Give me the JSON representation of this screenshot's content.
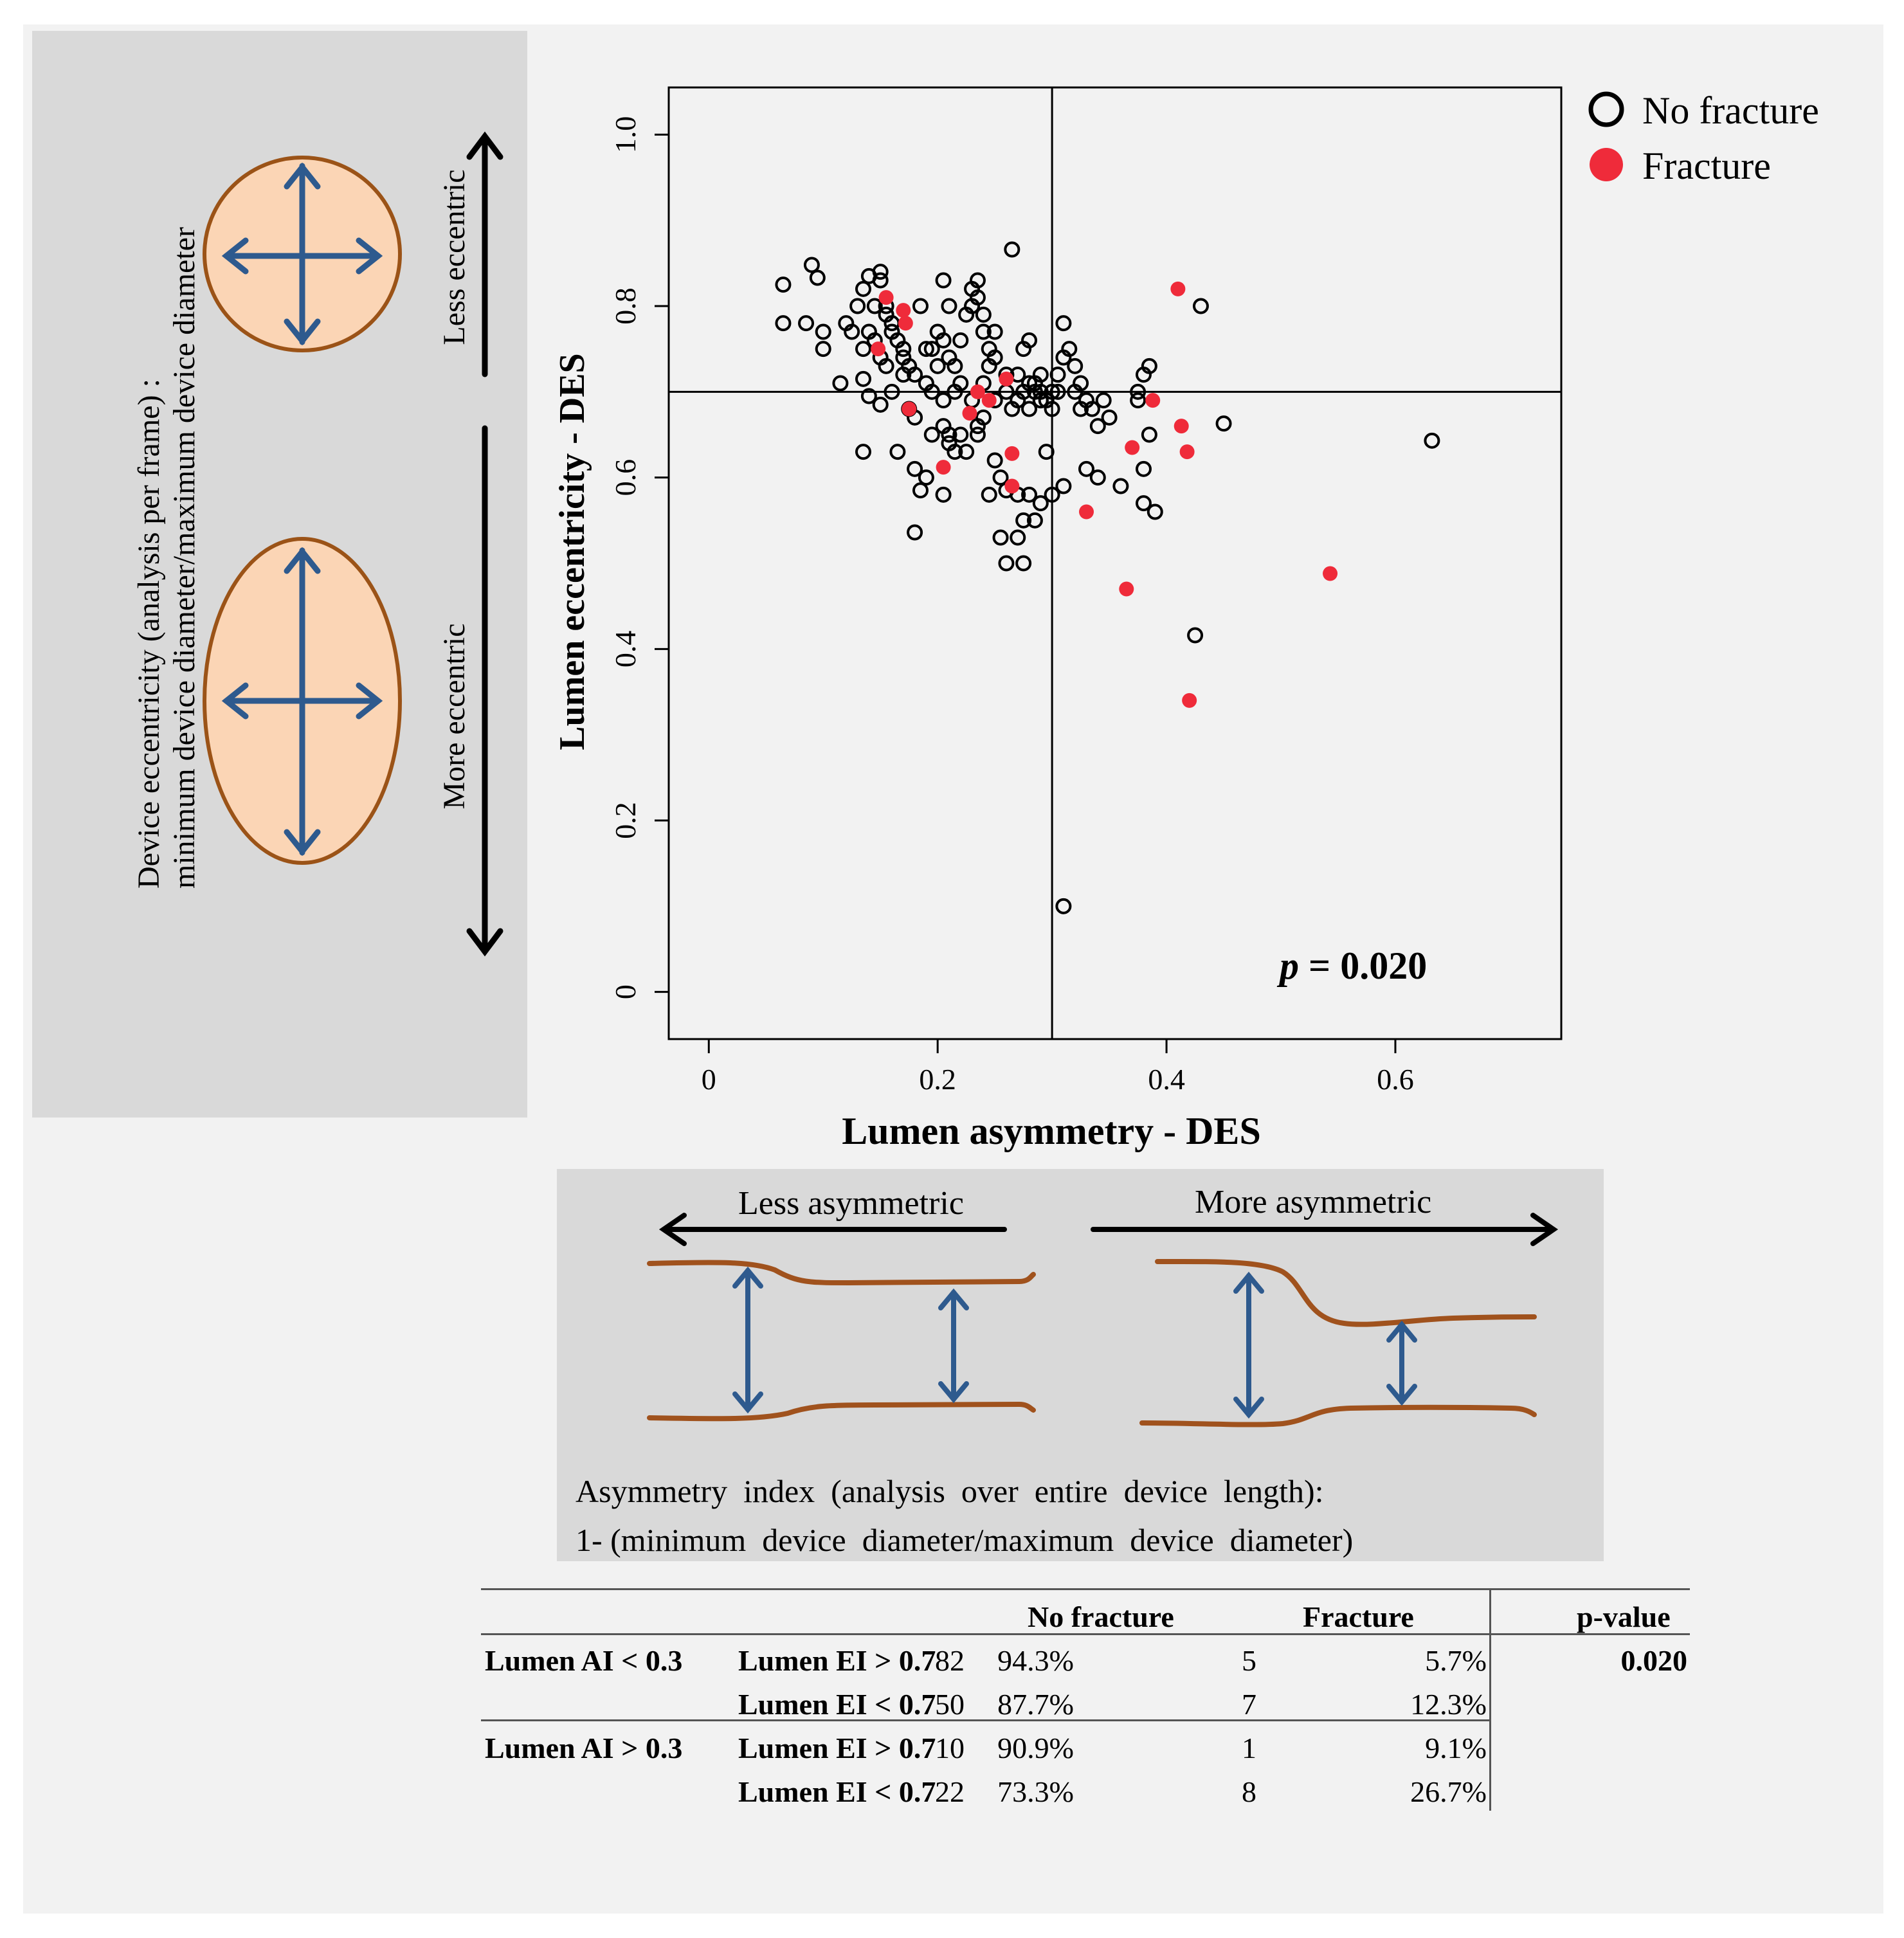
{
  "left_panel": {
    "caption_line1": "Device eccentricity  (analysis per frame) :",
    "caption_line2": "minimum device diameter/maximum device diameter",
    "less_label": "Less eccentric",
    "more_label": "More eccentric",
    "colors": {
      "panel": "#d9d9d9",
      "ellipse_fill": "#fbd5b5",
      "ellipse_stroke": "#9b5317",
      "arrow": "#2e5a8e"
    }
  },
  "bottom_panel": {
    "less_label": "Less asymmetric",
    "more_label": "More asymmetric",
    "caption_line1": "Asymmetry  index  (analysis  over  entire  device  length):",
    "caption_line2": "1- (minimum  device  diameter/maximum  device  diameter)",
    "colors": {
      "vessel": "#a0521d",
      "arrow": "#2e5a8e"
    }
  },
  "chart_data": {
    "type": "scatter",
    "xlabel": "Lumen asymmetry - DES",
    "ylabel": "Lumen eccentricity - DES",
    "xlim": [
      -0.035,
      0.745
    ],
    "ylim": [
      -0.055,
      1.055
    ],
    "xticks": [
      0,
      0.2,
      0.4,
      0.6
    ],
    "xtick_labels": [
      "0",
      "0.2",
      "0.4",
      "0.6"
    ],
    "yticks": [
      0,
      0.2,
      0.4,
      0.6,
      0.8,
      1.0
    ],
    "ytick_labels": [
      "0",
      "0.2",
      "0.4",
      "0.6",
      "0.8",
      "1.0"
    ],
    "reference_lines": {
      "x": 0.3,
      "y": 0.7
    },
    "annotation_p_italic": "p",
    "annotation_value": " = 0.020",
    "legend": {
      "placement": "top-right, outside",
      "entries": [
        "No fracture",
        "Fracture"
      ]
    },
    "series": [
      {
        "name": "No fracture",
        "marker": "open-circle",
        "color": "#000000",
        "points": [
          [
            0.065,
            0.825
          ],
          [
            0.09,
            0.848
          ],
          [
            0.095,
            0.833
          ],
          [
            0.085,
            0.78
          ],
          [
            0.065,
            0.78
          ],
          [
            0.1,
            0.77
          ],
          [
            0.1,
            0.75
          ],
          [
            0.115,
            0.71
          ],
          [
            0.12,
            0.78
          ],
          [
            0.125,
            0.77
          ],
          [
            0.13,
            0.8
          ],
          [
            0.135,
            0.82
          ],
          [
            0.135,
            0.75
          ],
          [
            0.14,
            0.835
          ],
          [
            0.145,
            0.8
          ],
          [
            0.14,
            0.77
          ],
          [
            0.15,
            0.84
          ],
          [
            0.15,
            0.83
          ],
          [
            0.155,
            0.79
          ],
          [
            0.145,
            0.76
          ],
          [
            0.15,
            0.74
          ],
          [
            0.155,
            0.73
          ],
          [
            0.16,
            0.78
          ],
          [
            0.165,
            0.76
          ],
          [
            0.17,
            0.74
          ],
          [
            0.17,
            0.72
          ],
          [
            0.175,
            0.73
          ],
          [
            0.18,
            0.72
          ],
          [
            0.185,
            0.8
          ],
          [
            0.19,
            0.75
          ],
          [
            0.19,
            0.71
          ],
          [
            0.195,
            0.7
          ],
          [
            0.2,
            0.77
          ],
          [
            0.205,
            0.76
          ],
          [
            0.205,
            0.83
          ],
          [
            0.21,
            0.8
          ],
          [
            0.215,
            0.73
          ],
          [
            0.215,
            0.7
          ],
          [
            0.22,
            0.76
          ],
          [
            0.225,
            0.79
          ],
          [
            0.23,
            0.82
          ],
          [
            0.23,
            0.8
          ],
          [
            0.235,
            0.83
          ],
          [
            0.235,
            0.81
          ],
          [
            0.24,
            0.79
          ],
          [
            0.24,
            0.77
          ],
          [
            0.245,
            0.75
          ],
          [
            0.245,
            0.73
          ],
          [
            0.25,
            0.77
          ],
          [
            0.25,
            0.74
          ],
          [
            0.26,
            0.72
          ],
          [
            0.26,
            0.7
          ],
          [
            0.265,
            0.866
          ],
          [
            0.27,
            0.69
          ],
          [
            0.275,
            0.7
          ],
          [
            0.275,
            0.75
          ],
          [
            0.28,
            0.76
          ],
          [
            0.28,
            0.71
          ],
          [
            0.285,
            0.7
          ],
          [
            0.29,
            0.72
          ],
          [
            0.29,
            0.7
          ],
          [
            0.295,
            0.69
          ],
          [
            0.3,
            0.68
          ],
          [
            0.305,
            0.7
          ],
          [
            0.31,
            0.78
          ],
          [
            0.315,
            0.75
          ],
          [
            0.32,
            0.73
          ],
          [
            0.325,
            0.71
          ],
          [
            0.33,
            0.69
          ],
          [
            0.335,
            0.68
          ],
          [
            0.34,
            0.66
          ],
          [
            0.35,
            0.67
          ],
          [
            0.135,
            0.715
          ],
          [
            0.14,
            0.695
          ],
          [
            0.15,
            0.685
          ],
          [
            0.16,
            0.7
          ],
          [
            0.175,
            0.68
          ],
          [
            0.18,
            0.67
          ],
          [
            0.195,
            0.65
          ],
          [
            0.205,
            0.66
          ],
          [
            0.21,
            0.64
          ],
          [
            0.215,
            0.63
          ],
          [
            0.225,
            0.63
          ],
          [
            0.235,
            0.65
          ],
          [
            0.25,
            0.62
          ],
          [
            0.255,
            0.6
          ],
          [
            0.26,
            0.585
          ],
          [
            0.27,
            0.58
          ],
          [
            0.28,
            0.58
          ],
          [
            0.29,
            0.57
          ],
          [
            0.3,
            0.58
          ],
          [
            0.285,
            0.55
          ],
          [
            0.275,
            0.55
          ],
          [
            0.27,
            0.53
          ],
          [
            0.255,
            0.53
          ],
          [
            0.26,
            0.5
          ],
          [
            0.275,
            0.5
          ],
          [
            0.135,
            0.63
          ],
          [
            0.165,
            0.63
          ],
          [
            0.18,
            0.61
          ],
          [
            0.19,
            0.6
          ],
          [
            0.185,
            0.585
          ],
          [
            0.205,
            0.58
          ],
          [
            0.18,
            0.536
          ],
          [
            0.245,
            0.58
          ],
          [
            0.295,
            0.63
          ],
          [
            0.31,
            0.59
          ],
          [
            0.33,
            0.61
          ],
          [
            0.34,
            0.6
          ],
          [
            0.36,
            0.59
          ],
          [
            0.38,
            0.61
          ],
          [
            0.38,
            0.57
          ],
          [
            0.39,
            0.56
          ],
          [
            0.385,
            0.65
          ],
          [
            0.375,
            0.69
          ],
          [
            0.375,
            0.7
          ],
          [
            0.38,
            0.72
          ],
          [
            0.385,
            0.73
          ],
          [
            0.43,
            0.8
          ],
          [
            0.45,
            0.663
          ],
          [
            0.632,
            0.643
          ],
          [
            0.425,
            0.416
          ],
          [
            0.31,
            0.1
          ],
          [
            0.2,
            0.73
          ],
          [
            0.21,
            0.74
          ],
          [
            0.22,
            0.71
          ],
          [
            0.23,
            0.69
          ],
          [
            0.24,
            0.71
          ],
          [
            0.25,
            0.69
          ],
          [
            0.265,
            0.68
          ],
          [
            0.28,
            0.68
          ],
          [
            0.29,
            0.69
          ],
          [
            0.305,
            0.72
          ],
          [
            0.31,
            0.74
          ],
          [
            0.32,
            0.7
          ],
          [
            0.325,
            0.68
          ],
          [
            0.345,
            0.69
          ],
          [
            0.17,
            0.75
          ],
          [
            0.155,
            0.8
          ],
          [
            0.16,
            0.77
          ],
          [
            0.195,
            0.75
          ],
          [
            0.205,
            0.69
          ],
          [
            0.21,
            0.65
          ],
          [
            0.22,
            0.65
          ],
          [
            0.235,
            0.66
          ],
          [
            0.24,
            0.67
          ],
          [
            0.29,
            0.69
          ],
          [
            0.3,
            0.7
          ],
          [
            0.285,
            0.71
          ],
          [
            0.27,
            0.72
          ]
        ]
      },
      {
        "name": "Fracture",
        "marker": "filled-circle",
        "color": "#ef2b3a",
        "points": [
          [
            0.155,
            0.81
          ],
          [
            0.17,
            0.795
          ],
          [
            0.172,
            0.78
          ],
          [
            0.148,
            0.75
          ],
          [
            0.175,
            0.68
          ],
          [
            0.205,
            0.612
          ],
          [
            0.228,
            0.675
          ],
          [
            0.235,
            0.7
          ],
          [
            0.245,
            0.69
          ],
          [
            0.26,
            0.715
          ],
          [
            0.265,
            0.628
          ],
          [
            0.265,
            0.59
          ],
          [
            0.33,
            0.56
          ],
          [
            0.37,
            0.635
          ],
          [
            0.365,
            0.47
          ],
          [
            0.388,
            0.69
          ],
          [
            0.41,
            0.82
          ],
          [
            0.413,
            0.66
          ],
          [
            0.418,
            0.63
          ],
          [
            0.42,
            0.34
          ],
          [
            0.543,
            0.488
          ]
        ]
      }
    ]
  },
  "table": {
    "headers": {
      "no_fracture": "No fracture",
      "fracture": "Fracture",
      "pvalue": "p-value"
    },
    "rows": [
      {
        "group": "Lumen AI < 0.3",
        "sub": "Lumen EI > 0.7",
        "nf_n": "82",
        "nf_pct": "94.3%",
        "f_n": "5",
        "f_pct": "5.7%",
        "p": "0.020"
      },
      {
        "group": "",
        "sub": "Lumen EI < 0.7",
        "nf_n": "50",
        "nf_pct": "87.7%",
        "f_n": "7",
        "f_pct": "12.3%",
        "p": ""
      },
      {
        "group": "Lumen AI > 0.3",
        "sub": "Lumen EI > 0.7",
        "nf_n": "10",
        "nf_pct": "90.9%",
        "f_n": "1",
        "f_pct": "9.1%",
        "p": ""
      },
      {
        "group": "",
        "sub": "Lumen EI < 0.7",
        "nf_n": "22",
        "nf_pct": "73.3%",
        "f_n": "8",
        "f_pct": "26.7%",
        "p": ""
      }
    ]
  }
}
